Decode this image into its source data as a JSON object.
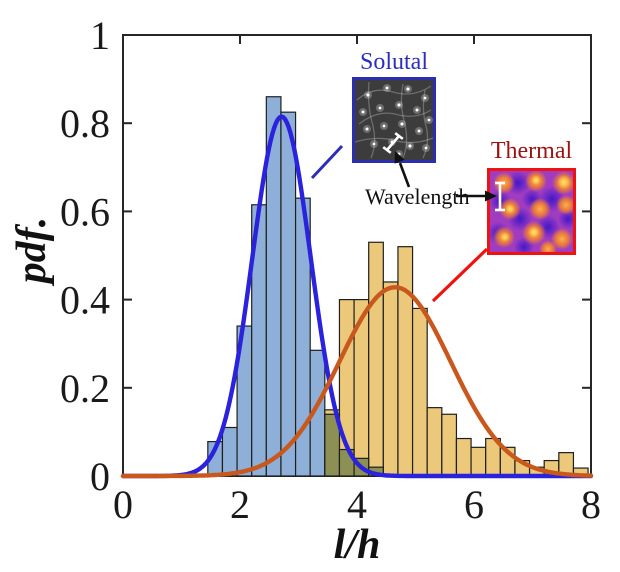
{
  "axes": {
    "xlabel": "l/h",
    "ylabel": "pdf.",
    "xtick_labels": [
      "0",
      "2",
      "4",
      "6",
      "8"
    ],
    "ytick_labels": [
      "0",
      "0.2",
      "0.4",
      "0.6",
      "0.8",
      "1"
    ]
  },
  "annotations": {
    "solutal": {
      "label": "Solutal",
      "color": "#2d2dbb"
    },
    "thermal": {
      "label": "Thermal",
      "color": "#9b1212"
    },
    "wavelength": {
      "label": "Wavelength",
      "color": "#111111"
    }
  },
  "chart_data": {
    "type": "bar",
    "title": "",
    "xlabel": "l/h",
    "ylabel": "pdf.",
    "xlim": [
      0,
      8
    ],
    "ylim": [
      0,
      1
    ],
    "xticks": [
      0,
      2,
      4,
      6,
      8
    ],
    "yticks": [
      0,
      0.2,
      0.4,
      0.6,
      0.8,
      1
    ],
    "grid": false,
    "legend_position": "none",
    "bin_width": 0.25,
    "overlap_fill": "#8d9054",
    "bar_stroke": "#1f1f1f",
    "series": [
      {
        "name": "Solutal histogram",
        "type": "histogram",
        "bin_start": 1.45,
        "bin_width": 0.25,
        "fill": "#8eb0d8",
        "values": [
          0.078,
          0.11,
          0.34,
          0.615,
          0.86,
          0.825,
          0.63,
          0.285,
          0.14,
          0.06,
          0.04,
          0.02
        ]
      },
      {
        "name": "Thermal histogram",
        "type": "histogram",
        "bin_start": 3.45,
        "bin_width": 0.25,
        "fill": "#ebc87a",
        "values": [
          0.15,
          0.4,
          0.4,
          0.53,
          0.44,
          0.52,
          0.38,
          0.155,
          0.14,
          0.085,
          0.065,
          0.085,
          0.065,
          0.035,
          0.02,
          0.035,
          0.053,
          0.018
        ]
      },
      {
        "name": "Solutal fit curve",
        "type": "gaussian_curve",
        "mu": 2.71,
        "sigma": 0.5,
        "amplitude": 0.815,
        "color": "#2b22dd"
      },
      {
        "name": "Thermal fit curve",
        "type": "gaussian_curve",
        "mu": 4.65,
        "sigma": 0.95,
        "amplitude": 0.428,
        "color": "#c8581c"
      }
    ]
  }
}
